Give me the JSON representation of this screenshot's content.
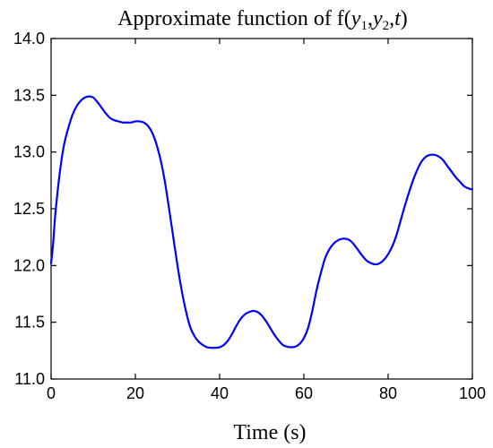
{
  "chart_data": {
    "type": "line",
    "title": {
      "prefix": "Approximate function of f(",
      "var1": "y",
      "sub1": "1",
      "sep1": ",",
      "var2": "y",
      "sub2": "2",
      "sep2": ",",
      "var3": "t",
      "suffix": ")"
    },
    "xlabel": "Time (s)",
    "ylabel": "",
    "xlim": [
      0,
      100
    ],
    "ylim": [
      11.0,
      14.0
    ],
    "xticks": [
      0,
      20,
      40,
      60,
      80,
      100
    ],
    "xtick_labels": [
      "0",
      "20",
      "40",
      "60",
      "80",
      "100"
    ],
    "yticks": [
      11.0,
      11.5,
      12.0,
      12.5,
      13.0,
      13.5,
      14.0
    ],
    "ytick_labels": [
      "11.0",
      "11.5",
      "12.0",
      "12.5",
      "13.0",
      "13.5",
      "14.0"
    ],
    "grid": false,
    "legend": "none",
    "colors": {
      "line": "#0000ff",
      "axes": "#000000",
      "background": "#ffffff"
    },
    "series": [
      {
        "x": [
          0,
          0.5,
          1,
          2,
          3,
          4,
          5,
          6,
          7,
          8,
          9,
          10,
          11,
          12,
          13,
          14,
          15,
          16,
          17,
          18,
          19,
          20,
          21,
          22,
          23,
          24,
          25,
          26,
          27,
          28,
          29,
          30,
          31,
          32,
          33,
          34,
          35,
          36,
          37,
          38,
          39,
          40,
          41,
          42,
          43,
          44,
          45,
          46,
          47,
          48,
          49,
          50,
          51,
          52,
          53,
          54,
          55,
          56,
          57,
          58,
          59,
          60,
          61,
          62,
          63,
          64,
          65,
          66,
          67,
          68,
          69,
          70,
          71,
          72,
          73,
          74,
          75,
          76,
          77,
          78,
          79,
          80,
          81,
          82,
          83,
          84,
          85,
          86,
          87,
          88,
          89,
          90,
          91,
          92,
          93,
          94,
          95,
          96,
          97,
          98,
          99,
          100
        ],
        "y": [
          12.02,
          12.2,
          12.45,
          12.8,
          13.05,
          13.2,
          13.32,
          13.4,
          13.45,
          13.48,
          13.49,
          13.48,
          13.44,
          13.39,
          13.34,
          13.3,
          13.28,
          13.27,
          13.26,
          13.26,
          13.26,
          13.27,
          13.27,
          13.26,
          13.23,
          13.17,
          13.07,
          12.93,
          12.74,
          12.5,
          12.25,
          12.0,
          11.78,
          11.6,
          11.46,
          11.38,
          11.33,
          11.3,
          11.28,
          11.275,
          11.275,
          11.28,
          11.3,
          11.34,
          11.4,
          11.47,
          11.53,
          11.57,
          11.59,
          11.6,
          11.59,
          11.56,
          11.51,
          11.45,
          11.39,
          11.34,
          11.3,
          11.285,
          11.28,
          11.285,
          11.31,
          11.36,
          11.45,
          11.6,
          11.78,
          11.93,
          12.06,
          12.14,
          12.19,
          12.22,
          12.235,
          12.235,
          12.22,
          12.18,
          12.13,
          12.08,
          12.04,
          12.02,
          12.01,
          12.02,
          12.05,
          12.1,
          12.17,
          12.27,
          12.4,
          12.53,
          12.65,
          12.76,
          12.85,
          12.92,
          12.96,
          12.975,
          12.975,
          12.96,
          12.93,
          12.88,
          12.83,
          12.78,
          12.74,
          12.7,
          12.68,
          12.67
        ]
      }
    ]
  }
}
